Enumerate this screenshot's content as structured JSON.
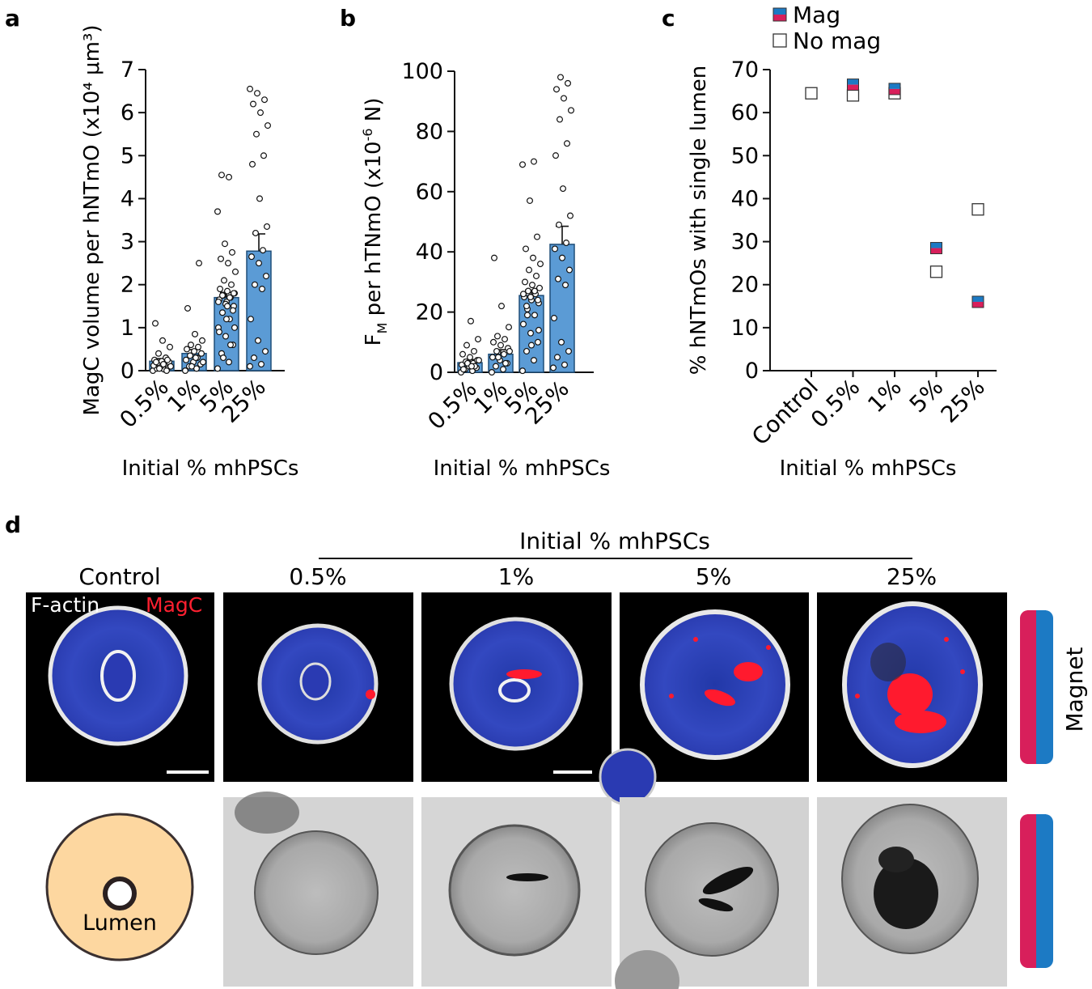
{
  "figure": {
    "panels": [
      "a",
      "b",
      "c",
      "d"
    ],
    "colors": {
      "bar": "#5b9bd5",
      "bar_edge": "#1f4e79",
      "magnet_pink": "#d81f5b",
      "magnet_blue": "#1c7ac4",
      "nuclei_blue": "#2b3bb0",
      "magc_red": "#ff1a2e",
      "lumen_fill": "#fdd7a0",
      "brightfield_bg": "#d4d4d4"
    }
  },
  "chart_data": [
    {
      "panel": "a",
      "type": "bar",
      "categories": [
        "0.5%",
        "1%",
        "5%",
        "25%"
      ],
      "values": [
        0.22,
        0.4,
        1.7,
        2.78
      ],
      "errors": [
        0.06,
        0.09,
        0.12,
        0.4
      ],
      "points": [
        [
          0.0,
          0.03,
          0.05,
          0.08,
          0.1,
          0.12,
          0.15,
          0.18,
          0.2,
          0.22,
          0.25,
          0.3,
          0.4,
          0.55,
          0.7,
          1.1,
          0.0,
          0.05,
          0.1,
          0.15,
          0.2,
          0.25
        ],
        [
          0.0,
          0.05,
          0.1,
          0.15,
          0.2,
          0.25,
          0.3,
          0.35,
          0.4,
          0.45,
          0.5,
          0.55,
          0.6,
          0.7,
          0.85,
          1.45,
          2.5,
          0.1,
          0.2,
          0.3
        ],
        [
          0.05,
          0.2,
          0.4,
          0.6,
          0.8,
          1.0,
          1.2,
          1.35,
          1.5,
          1.6,
          1.65,
          1.7,
          1.75,
          1.8,
          1.85,
          1.9,
          2.0,
          2.1,
          2.3,
          2.5,
          2.6,
          2.75,
          2.95,
          3.7,
          4.5,
          4.55,
          1.4,
          1.55,
          1.6,
          1.7,
          1.75,
          1.8,
          1.2,
          0.9,
          0.6,
          0.3,
          1.0,
          1.5
        ],
        [
          0.1,
          0.15,
          0.3,
          0.45,
          0.7,
          1.2,
          1.9,
          2.0,
          2.2,
          2.5,
          2.65,
          2.8,
          3.2,
          3.35,
          4.0,
          4.8,
          5.0,
          5.5,
          5.7,
          6.0,
          6.2,
          6.3,
          6.45,
          6.55
        ]
      ],
      "xlabel": "Initial % mhPSCs",
      "ylabel": "MagC volume per hNTmO (x10⁴ μm³)",
      "ylim": [
        0,
        7
      ],
      "yticks": [
        0,
        1,
        2,
        3,
        4,
        5,
        6,
        7
      ]
    },
    {
      "panel": "b",
      "type": "bar",
      "categories": [
        "0.5%",
        "1%",
        "5%",
        "25%"
      ],
      "values": [
        3.2,
        6.0,
        25.5,
        42.5
      ],
      "errors": [
        1.0,
        1.5,
        1.8,
        6.0
      ],
      "points": [
        [
          0.0,
          0.5,
          1.0,
          1.5,
          2.0,
          2.5,
          3.0,
          3.5,
          4.0,
          5.0,
          6.0,
          7.0,
          9.0,
          11.0,
          17.0,
          1.0,
          2.0,
          3.0,
          4.0,
          2.0
        ],
        [
          0.0,
          1.0,
          2.0,
          3.0,
          4.0,
          5.0,
          6.0,
          7.0,
          8.0,
          9.0,
          10.0,
          11.0,
          12.0,
          15.0,
          22.0,
          38.0,
          3.0,
          5.0,
          7.0
        ],
        [
          0.5,
          4.0,
          7.0,
          10.0,
          13.0,
          16.0,
          19.0,
          21.0,
          23.0,
          24.0,
          25.0,
          26.0,
          27.0,
          28.0,
          29.0,
          30.0,
          32.0,
          34.0,
          36.0,
          38.0,
          41.0,
          45.0,
          57.0,
          69.0,
          70.0,
          22.0,
          24.0,
          25.0,
          26.0,
          27.0,
          19.0,
          14.0,
          9.0
        ],
        [
          1.5,
          2.5,
          5.0,
          7.0,
          10.0,
          18.0,
          29.0,
          31.0,
          34.0,
          38.0,
          41.0,
          43.0,
          49.0,
          52.0,
          61.0,
          72.0,
          76.0,
          84.0,
          87.0,
          91.0,
          94.0,
          96.0,
          98.0
        ]
      ],
      "xlabel": "Initial % mhPSCs",
      "ylabel": "F_M per hTNmO (x10^-6 N)",
      "ylabel_parts": {
        "f": "F",
        "sub": "M",
        "mid": " per hTNmO (x10",
        "sup": "-6",
        "end": " N)"
      },
      "ylim": [
        0,
        100
      ],
      "yticks": [
        0,
        20,
        40,
        60,
        80,
        100
      ]
    },
    {
      "panel": "c",
      "type": "scatter",
      "categories": [
        "Control",
        "0.5%",
        "1%",
        "5%",
        "25%"
      ],
      "series": [
        {
          "name": "Mag",
          "values": [
            null,
            66.5,
            65.5,
            28.5,
            16.0
          ]
        },
        {
          "name": "No mag",
          "values": [
            64.5,
            64.0,
            64.5,
            23.0,
            37.5
          ]
        }
      ],
      "xlabel": "Initial % mhPSCs",
      "ylabel": "% hNTmOs with single lumen",
      "ylim": [
        0,
        70
      ],
      "yticks": [
        0,
        10,
        20,
        30,
        40,
        50,
        60,
        70
      ],
      "legend": "top-left"
    }
  ],
  "panel_d": {
    "header": "Initial % mhPSCs",
    "columns": [
      "Control",
      "0.5%",
      "1%",
      "5%",
      "25%"
    ],
    "fluor_label_white": "F-actin",
    "fluor_label_red": "MagC",
    "magnet_label": "Magnet",
    "lumen_label": "Lumen"
  }
}
